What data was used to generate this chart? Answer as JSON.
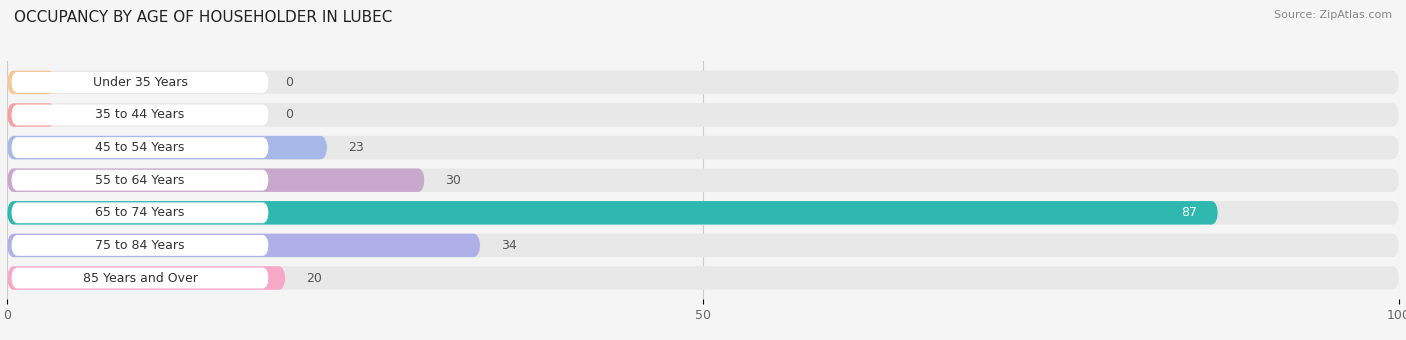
{
  "title": "OCCUPANCY BY AGE OF HOUSEHOLDER IN LUBEC",
  "source": "Source: ZipAtlas.com",
  "categories": [
    "Under 35 Years",
    "35 to 44 Years",
    "45 to 54 Years",
    "55 to 64 Years",
    "65 to 74 Years",
    "75 to 84 Years",
    "85 Years and Over"
  ],
  "values": [
    0,
    0,
    23,
    30,
    87,
    34,
    20
  ],
  "bar_colors": [
    "#f5c896",
    "#f5a0a0",
    "#a8b8e8",
    "#c8a8cc",
    "#2eb8b0",
    "#b0b0e8",
    "#f5a8c8"
  ],
  "xlim": [
    0,
    100
  ],
  "xticks": [
    0,
    50,
    100
  ],
  "title_fontsize": 11,
  "label_fontsize": 9,
  "value_fontsize": 9,
  "bar_height": 0.72,
  "row_bg_color": "#e8e8e8",
  "label_bg_color": "#ffffff",
  "fig_bg_color": "#f5f5f5"
}
